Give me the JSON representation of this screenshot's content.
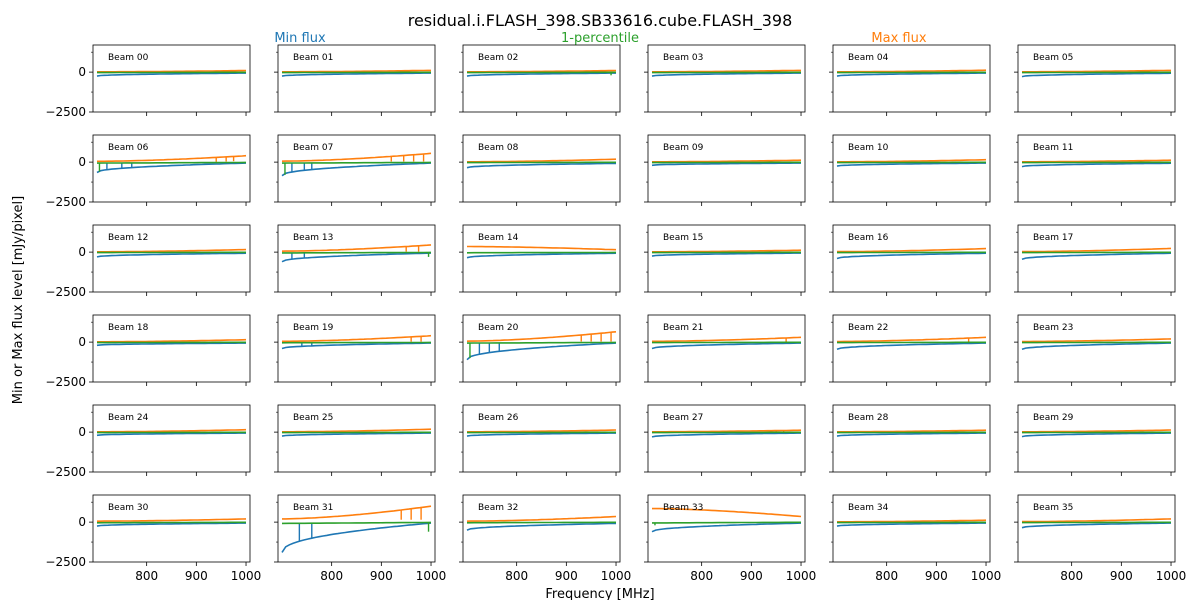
{
  "figure": {
    "title": "residual.i.FLASH_398.SB33616.cube.FLASH_398",
    "legend": [
      {
        "label": "Min flux",
        "color": "#1f77b4"
      },
      {
        "label": "1-percentile",
        "color": "#2ca02c"
      },
      {
        "label": "Max flux",
        "color": "#ff7f0e"
      }
    ],
    "xlabel": "Frequency [MHz]",
    "ylabel": "Min or Max flux level [mJy/pixel]"
  },
  "chart_data": {
    "type": "line",
    "layout": "small-multiples 6x6",
    "x_range_mhz": [
      700,
      1000
    ],
    "xlim": [
      692,
      1008
    ],
    "ylim": [
      -2500,
      1700
    ],
    "x_ticks": [
      800,
      900,
      1000
    ],
    "x_tick_labels": [
      "800",
      "900",
      "1000"
    ],
    "y_ticks": [
      0,
      -2500
    ],
    "y_tick_labels": [
      "0",
      "−2500"
    ],
    "y_minor_ticks": [
      1250,
      -1250
    ],
    "series_colors": {
      "min": "#1f77b4",
      "max": "#ff7f0e",
      "p1": "#2ca02c"
    },
    "panels": [
      {
        "label": "Beam 00",
        "min": [
          -250,
          -60
        ],
        "max": [
          20,
          100
        ],
        "p1": [
          -30,
          -10
        ],
        "spikes_min": [],
        "spikes_max": [],
        "p1_dips": []
      },
      {
        "label": "Beam 01",
        "min": [
          -250,
          -60
        ],
        "max": [
          20,
          110
        ],
        "p1": [
          -30,
          -10
        ],
        "spikes_min": [],
        "spikes_max": [],
        "p1_dips": []
      },
      {
        "label": "Beam 02",
        "min": [
          -250,
          -60
        ],
        "max": [
          20,
          100
        ],
        "p1": [
          -30,
          -10
        ],
        "spikes_min": [],
        "spikes_max": [],
        "p1_dips": [
          [
            990,
            -200
          ]
        ]
      },
      {
        "label": "Beam 03",
        "min": [
          -250,
          -60
        ],
        "max": [
          20,
          110
        ],
        "p1": [
          -30,
          -10
        ],
        "spikes_min": [],
        "spikes_max": [],
        "p1_dips": []
      },
      {
        "label": "Beam 04",
        "min": [
          -250,
          -60
        ],
        "max": [
          20,
          120
        ],
        "p1": [
          -30,
          -10
        ],
        "spikes_min": [],
        "spikes_max": [
          [
            990,
            150
          ]
        ],
        "p1_dips": []
      },
      {
        "label": "Beam 05",
        "min": [
          -280,
          -70
        ],
        "max": [
          20,
          110
        ],
        "p1": [
          -30,
          -10
        ],
        "spikes_min": [],
        "spikes_max": [],
        "p1_dips": []
      },
      {
        "label": "Beam 06",
        "min": [
          -650,
          -60
        ],
        "max": [
          50,
          400
        ],
        "p1": [
          -60,
          -20
        ],
        "spikes_min": [
          [
            720,
            -50
          ],
          [
            750,
            -50
          ],
          [
            770,
            -60
          ]
        ],
        "spikes_max": [
          [
            940,
            20
          ],
          [
            960,
            40
          ],
          [
            975,
            60
          ]
        ],
        "p1_dips": [
          [
            705,
            -600
          ]
        ]
      },
      {
        "label": "Beam 07",
        "min": [
          -850,
          -60
        ],
        "max": [
          60,
          550
        ],
        "p1": [
          -60,
          -20
        ],
        "spikes_min": [
          [
            720,
            -50
          ],
          [
            745,
            -60
          ],
          [
            760,
            -60
          ]
        ],
        "spikes_max": [
          [
            920,
            40
          ],
          [
            945,
            40
          ],
          [
            965,
            40
          ],
          [
            985,
            40
          ]
        ],
        "p1_dips": [
          [
            706,
            -800
          ]
        ]
      },
      {
        "label": "Beam 08",
        "min": [
          -350,
          -80
        ],
        "max": [
          20,
          180
        ],
        "p1": [
          -30,
          -10
        ],
        "spikes_min": [],
        "spikes_max": [],
        "p1_dips": []
      },
      {
        "label": "Beam 09",
        "min": [
          -200,
          -60
        ],
        "max": [
          20,
          120
        ],
        "p1": [
          -30,
          -10
        ],
        "spikes_min": [],
        "spikes_max": [],
        "p1_dips": []
      },
      {
        "label": "Beam 10",
        "min": [
          -250,
          -60
        ],
        "max": [
          20,
          150
        ],
        "p1": [
          -30,
          -10
        ],
        "spikes_min": [],
        "spikes_max": [],
        "p1_dips": []
      },
      {
        "label": "Beam 11",
        "min": [
          -280,
          -70
        ],
        "max": [
          20,
          120
        ],
        "p1": [
          -30,
          -10
        ],
        "spikes_min": [],
        "spikes_max": [],
        "p1_dips": []
      },
      {
        "label": "Beam 12",
        "min": [
          -300,
          -70
        ],
        "max": [
          20,
          160
        ],
        "p1": [
          -30,
          -10
        ],
        "spikes_min": [],
        "spikes_max": [],
        "p1_dips": []
      },
      {
        "label": "Beam 13",
        "min": [
          -600,
          -60
        ],
        "max": [
          60,
          450
        ],
        "p1": [
          -50,
          -20
        ],
        "spikes_min": [
          [
            720,
            -50
          ],
          [
            745,
            -60
          ]
        ],
        "spikes_max": [
          [
            950,
            30
          ],
          [
            975,
            30
          ]
        ],
        "p1_dips": [
          [
            995,
            -300
          ]
        ]
      },
      {
        "label": "Beam 14",
        "min": [
          -350,
          -70
        ],
        "max": [
          350,
          150
        ],
        "p1": [
          -40,
          -20
        ],
        "spikes_min": [],
        "spikes_max": [],
        "p1_dips": []
      },
      {
        "label": "Beam 15",
        "min": [
          -250,
          -60
        ],
        "max": [
          20,
          120
        ],
        "p1": [
          -30,
          -10
        ],
        "spikes_min": [],
        "spikes_max": [],
        "p1_dips": []
      },
      {
        "label": "Beam 16",
        "min": [
          -400,
          -70
        ],
        "max": [
          30,
          220
        ],
        "p1": [
          -30,
          -10
        ],
        "spikes_min": [],
        "spikes_max": [],
        "p1_dips": []
      },
      {
        "label": "Beam 17",
        "min": [
          -450,
          -70
        ],
        "max": [
          30,
          230
        ],
        "p1": [
          -30,
          -10
        ],
        "spikes_min": [],
        "spikes_max": [],
        "p1_dips": []
      },
      {
        "label": "Beam 18",
        "min": [
          -200,
          -60
        ],
        "max": [
          20,
          150
        ],
        "p1": [
          -30,
          -10
        ],
        "spikes_min": [],
        "spikes_max": [],
        "p1_dips": []
      },
      {
        "label": "Beam 19",
        "min": [
          -400,
          -60
        ],
        "max": [
          50,
          400
        ],
        "p1": [
          -40,
          -20
        ],
        "spikes_min": [
          [
            740,
            -50
          ],
          [
            760,
            -60
          ]
        ],
        "spikes_max": [
          [
            960,
            30
          ],
          [
            980,
            30
          ]
        ],
        "p1_dips": []
      },
      {
        "label": "Beam 20",
        "min": [
          -1100,
          -60
        ],
        "max": [
          60,
          650
        ],
        "p1": [
          -60,
          -20
        ],
        "spikes_min": [
          [
            725,
            -50
          ],
          [
            745,
            -60
          ],
          [
            765,
            -60
          ]
        ],
        "spikes_max": [
          [
            930,
            40
          ],
          [
            950,
            40
          ],
          [
            970,
            40
          ],
          [
            990,
            40
          ]
        ],
        "p1_dips": [
          [
            706,
            -1000
          ]
        ]
      },
      {
        "label": "Beam 21",
        "min": [
          -400,
          -60
        ],
        "max": [
          50,
          300
        ],
        "p1": [
          -30,
          -10
        ],
        "spikes_min": [],
        "spikes_max": [
          [
            970,
            30
          ]
        ],
        "p1_dips": []
      },
      {
        "label": "Beam 22",
        "min": [
          -450,
          -60
        ],
        "max": [
          40,
          300
        ],
        "p1": [
          -30,
          -10
        ],
        "spikes_min": [],
        "spikes_max": [
          [
            965,
            30
          ]
        ],
        "p1_dips": []
      },
      {
        "label": "Beam 23",
        "min": [
          -450,
          -60
        ],
        "max": [
          40,
          200
        ],
        "p1": [
          -30,
          -10
        ],
        "spikes_min": [],
        "spikes_max": [],
        "p1_dips": []
      },
      {
        "label": "Beam 24",
        "min": [
          -200,
          -60
        ],
        "max": [
          20,
          150
        ],
        "p1": [
          -30,
          -10
        ],
        "spikes_min": [],
        "spikes_max": [],
        "p1_dips": []
      },
      {
        "label": "Beam 25",
        "min": [
          -250,
          -60
        ],
        "max": [
          20,
          180
        ],
        "p1": [
          -30,
          -10
        ],
        "spikes_min": [],
        "spikes_max": [],
        "p1_dips": []
      },
      {
        "label": "Beam 26",
        "min": [
          -250,
          -60
        ],
        "max": [
          20,
          130
        ],
        "p1": [
          -30,
          -10
        ],
        "spikes_min": [],
        "spikes_max": [],
        "p1_dips": []
      },
      {
        "label": "Beam 27",
        "min": [
          -300,
          -60
        ],
        "max": [
          20,
          120
        ],
        "p1": [
          -30,
          -10
        ],
        "spikes_min": [],
        "spikes_max": [
          [
            950,
            20
          ],
          [
            965,
            20
          ]
        ],
        "p1_dips": []
      },
      {
        "label": "Beam 28",
        "min": [
          -250,
          -60
        ],
        "max": [
          20,
          120
        ],
        "p1": [
          -30,
          -10
        ],
        "spikes_min": [],
        "spikes_max": [],
        "p1_dips": []
      },
      {
        "label": "Beam 29",
        "min": [
          -280,
          -60
        ],
        "max": [
          20,
          130
        ],
        "p1": [
          -30,
          -10
        ],
        "spikes_min": [],
        "spikes_max": [],
        "p1_dips": []
      },
      {
        "label": "Beam 30",
        "min": [
          -250,
          -60
        ],
        "max": [
          60,
          200
        ],
        "p1": [
          -40,
          -10
        ],
        "spikes_min": [],
        "spikes_max": [],
        "p1_dips": []
      },
      {
        "label": "Beam 31",
        "min": [
          -1900,
          -60
        ],
        "max": [
          200,
          1000
        ],
        "p1": [
          -80,
          -20
        ],
        "spikes_min": [
          [
            735,
            -60
          ],
          [
            760,
            -60
          ]
        ],
        "spikes_max": [
          [
            940,
            150
          ],
          [
            960,
            150
          ],
          [
            980,
            150
          ]
        ],
        "p1_dips": [
          [
            995,
            -600
          ]
        ]
      },
      {
        "label": "Beam 32",
        "min": [
          -500,
          -80
        ],
        "max": [
          60,
          350
        ],
        "p1": [
          -40,
          -10
        ],
        "spikes_min": [],
        "spikes_max": [],
        "p1_dips": []
      },
      {
        "label": "Beam 33",
        "min": [
          -600,
          -60
        ],
        "max": [
          850,
          350
        ],
        "p1": [
          -50,
          -10
        ],
        "spikes_min": [],
        "spikes_max": [],
        "p1_dips": [
          [
            706,
            -200
          ]
        ]
      },
      {
        "label": "Beam 34",
        "min": [
          -250,
          -60
        ],
        "max": [
          20,
          120
        ],
        "p1": [
          -30,
          -10
        ],
        "spikes_min": [],
        "spikes_max": [],
        "p1_dips": []
      },
      {
        "label": "Beam 35",
        "min": [
          -350,
          -60
        ],
        "max": [
          30,
          200
        ],
        "p1": [
          -30,
          -10
        ],
        "spikes_min": [],
        "spikes_max": [],
        "p1_dips": []
      }
    ]
  }
}
